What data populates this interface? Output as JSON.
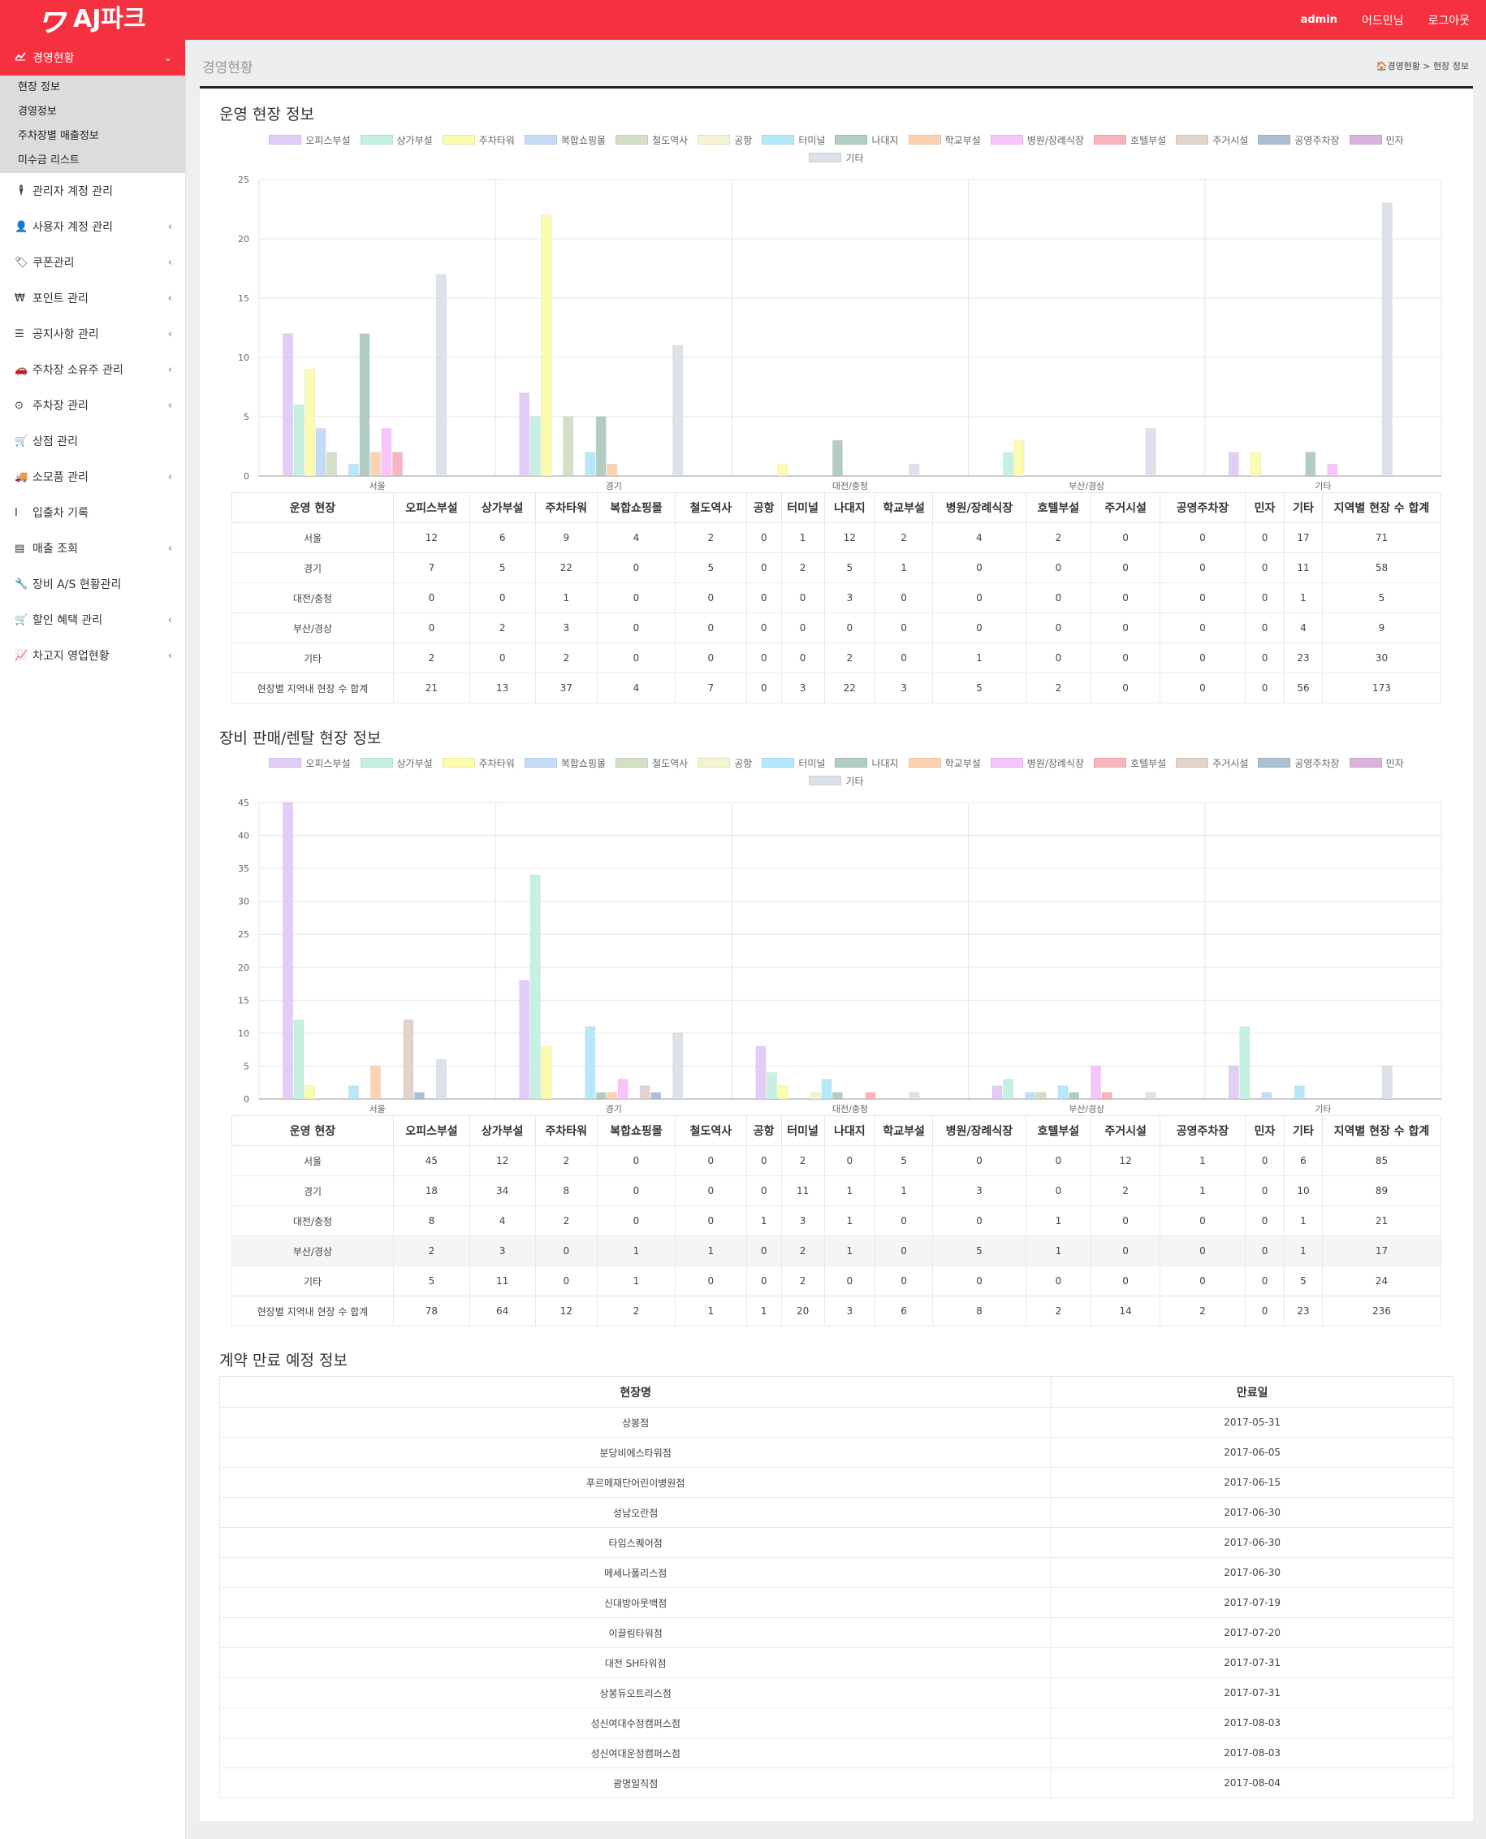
{
  "header": {
    "logo_mark": "ヮ",
    "logo_text": "AJ파크",
    "user": "admin",
    "role": "어드민님",
    "logout": "로그아웃"
  },
  "sidebar": {
    "active": {
      "label": "경영현황",
      "icon": "chart-line-icon"
    },
    "subitems": [
      "현장 정보",
      "경영정보",
      "주차장별 매출정보",
      "미수금 리스트"
    ],
    "items": [
      {
        "label": "관리자 계정 관리",
        "icon": "person-icon",
        "glyph": "🕴",
        "chevron": false
      },
      {
        "label": "사용자 계정 관리",
        "icon": "user-icon",
        "glyph": "👤",
        "chevron": true
      },
      {
        "label": "쿠폰관리",
        "icon": "tag-icon",
        "glyph": "🏷",
        "chevron": true
      },
      {
        "label": "포인트 관리",
        "icon": "won-icon",
        "glyph": "₩",
        "chevron": true
      },
      {
        "label": "공지사항 관리",
        "icon": "list-icon",
        "glyph": "☰",
        "chevron": true
      },
      {
        "label": "주차장 소유주 관리",
        "icon": "car-icon",
        "glyph": "🚗",
        "chevron": true
      },
      {
        "label": "주차장 관리",
        "icon": "circle-dot-icon",
        "glyph": "⊙",
        "chevron": true
      },
      {
        "label": "상점 관리",
        "icon": "cart-icon",
        "glyph": "🛒",
        "chevron": false
      },
      {
        "label": "소모품 관리",
        "icon": "truck-icon",
        "glyph": "🚚",
        "chevron": true
      },
      {
        "label": "입출차 기록",
        "icon": "i-cursor-icon",
        "glyph": "I",
        "chevron": false
      },
      {
        "label": "매출 조회",
        "icon": "table-icon",
        "glyph": "▤",
        "chevron": true
      },
      {
        "label": "장비 A/S 현황관리",
        "icon": "wrench-icon",
        "glyph": "🔧",
        "chevron": false
      },
      {
        "label": "할인 혜택 관리",
        "icon": "cart-plus-icon",
        "glyph": "🛒",
        "chevron": true
      },
      {
        "label": "차고지 영업현황",
        "icon": "area-chart-icon",
        "glyph": "📈",
        "chevron": true
      }
    ]
  },
  "page": {
    "title": "경영현황",
    "breadcrumb": "경영현황 > 현장 정보"
  },
  "colors": {
    "brand": "#f5313f",
    "series": [
      "#e1cdf7",
      "#c4f1e1",
      "#fcfcae",
      "#c5dcf7",
      "#d3dfc6",
      "#f4f4d2",
      "#b6e8fc",
      "#b2cdc2",
      "#fbd3b3",
      "#f7c4fb",
      "#f9b4bd",
      "#e1d4cd",
      "#aebfd3",
      "#d9b3dd",
      "#dde2ea"
    ]
  },
  "legend_names": [
    "오피스부설",
    "상가부설",
    "주차타워",
    "복합쇼핑몰",
    "철도역사",
    "공항",
    "터미널",
    "나대지",
    "학교부설",
    "병원/장례식장",
    "호텔부설",
    "주거시설",
    "공영주차장",
    "민자",
    "기타"
  ],
  "section1": {
    "title": "운영 현장 정보",
    "chart_data": {
      "type": "bar",
      "categories": [
        "서울",
        "경기",
        "대전/충청",
        "부산/경상",
        "기타"
      ],
      "ylim": [
        0,
        25
      ],
      "yticks": [
        0,
        5,
        10,
        15,
        20,
        25
      ],
      "grid": true,
      "legend": "top",
      "series": [
        {
          "name": "오피스부설",
          "values": [
            12,
            7,
            0,
            0,
            2
          ]
        },
        {
          "name": "상가부설",
          "values": [
            6,
            5,
            0,
            2,
            0
          ]
        },
        {
          "name": "주차타워",
          "values": [
            9,
            22,
            1,
            3,
            2
          ]
        },
        {
          "name": "복합쇼핑몰",
          "values": [
            4,
            0,
            0,
            0,
            0
          ]
        },
        {
          "name": "철도역사",
          "values": [
            2,
            5,
            0,
            0,
            0
          ]
        },
        {
          "name": "공항",
          "values": [
            0,
            0,
            0,
            0,
            0
          ]
        },
        {
          "name": "터미널",
          "values": [
            1,
            2,
            0,
            0,
            0
          ]
        },
        {
          "name": "나대지",
          "values": [
            12,
            5,
            3,
            0,
            2
          ]
        },
        {
          "name": "학교부설",
          "values": [
            2,
            1,
            0,
            0,
            0
          ]
        },
        {
          "name": "병원/장례식장",
          "values": [
            4,
            0,
            0,
            0,
            1
          ]
        },
        {
          "name": "호텔부설",
          "values": [
            2,
            0,
            0,
            0,
            0
          ]
        },
        {
          "name": "주거시설",
          "values": [
            0,
            0,
            0,
            0,
            0
          ]
        },
        {
          "name": "공영주차장",
          "values": [
            0,
            0,
            0,
            0,
            0
          ]
        },
        {
          "name": "민자",
          "values": [
            0,
            0,
            0,
            0,
            0
          ]
        },
        {
          "name": "기타",
          "values": [
            17,
            11,
            1,
            4,
            23
          ]
        }
      ]
    },
    "table": {
      "headers": [
        "운영 현장",
        "오피스부설",
        "상가부설",
        "주차타워",
        "복합쇼핑몰",
        "철도역사",
        "공항",
        "터미널",
        "나대지",
        "학교부설",
        "병원/장례식장",
        "호텔부설",
        "주거시설",
        "공영주차장",
        "민자",
        "기타",
        "지역별 현장 수 합계"
      ],
      "rows": [
        [
          "서울",
          "12",
          "6",
          "9",
          "4",
          "2",
          "0",
          "1",
          "12",
          "2",
          "4",
          "2",
          "0",
          "0",
          "0",
          "17",
          "71"
        ],
        [
          "경기",
          "7",
          "5",
          "22",
          "0",
          "5",
          "0",
          "2",
          "5",
          "1",
          "0",
          "0",
          "0",
          "0",
          "0",
          "11",
          "58"
        ],
        [
          "대전/충청",
          "0",
          "0",
          "1",
          "0",
          "0",
          "0",
          "0",
          "3",
          "0",
          "0",
          "0",
          "0",
          "0",
          "0",
          "1",
          "5"
        ],
        [
          "부산/경상",
          "0",
          "2",
          "3",
          "0",
          "0",
          "0",
          "0",
          "0",
          "0",
          "0",
          "0",
          "0",
          "0",
          "0",
          "4",
          "9"
        ],
        [
          "기타",
          "2",
          "0",
          "2",
          "0",
          "0",
          "0",
          "0",
          "2",
          "0",
          "1",
          "0",
          "0",
          "0",
          "0",
          "23",
          "30"
        ],
        [
          "현장별 지역내 현장 수 합계",
          "21",
          "13",
          "37",
          "4",
          "7",
          "0",
          "3",
          "22",
          "3",
          "5",
          "2",
          "0",
          "0",
          "0",
          "56",
          "173"
        ]
      ]
    }
  },
  "section2": {
    "title": "장비 판매/렌탈 현장 정보",
    "chart_data": {
      "type": "bar",
      "categories": [
        "서울",
        "경기",
        "대전/충청",
        "부산/경상",
        "기타"
      ],
      "ylim": [
        0,
        45
      ],
      "yticks": [
        0,
        5,
        10,
        15,
        20,
        25,
        30,
        35,
        40,
        45
      ],
      "grid": true,
      "legend": "top",
      "series": [
        {
          "name": "오피스부설",
          "values": [
            45,
            18,
            8,
            2,
            5
          ]
        },
        {
          "name": "상가부설",
          "values": [
            12,
            34,
            4,
            3,
            11
          ]
        },
        {
          "name": "주차타워",
          "values": [
            2,
            8,
            2,
            0,
            0
          ]
        },
        {
          "name": "복합쇼핑몰",
          "values": [
            0,
            0,
            0,
            1,
            1
          ]
        },
        {
          "name": "철도역사",
          "values": [
            0,
            0,
            0,
            1,
            0
          ]
        },
        {
          "name": "공항",
          "values": [
            0,
            0,
            1,
            0,
            0
          ]
        },
        {
          "name": "터미널",
          "values": [
            2,
            11,
            3,
            2,
            2
          ]
        },
        {
          "name": "나대지",
          "values": [
            0,
            1,
            1,
            1,
            0
          ]
        },
        {
          "name": "학교부설",
          "values": [
            5,
            1,
            0,
            0,
            0
          ]
        },
        {
          "name": "병원/장례식장",
          "values": [
            0,
            3,
            0,
            5,
            0
          ]
        },
        {
          "name": "호텔부설",
          "values": [
            0,
            0,
            1,
            1,
            0
          ]
        },
        {
          "name": "주거시설",
          "values": [
            12,
            2,
            0,
            0,
            0
          ]
        },
        {
          "name": "공영주차장",
          "values": [
            1,
            1,
            0,
            0,
            0
          ]
        },
        {
          "name": "민자",
          "values": [
            0,
            0,
            0,
            0,
            0
          ]
        },
        {
          "name": "기타",
          "values": [
            6,
            10,
            1,
            1,
            5
          ]
        }
      ]
    },
    "table": {
      "headers": [
        "운영 현장",
        "오피스부설",
        "상가부설",
        "주차타워",
        "복합쇼핑몰",
        "철도역사",
        "공항",
        "터미널",
        "나대지",
        "학교부설",
        "병원/장례식장",
        "호텔부설",
        "주거시설",
        "공영주차장",
        "민자",
        "기타",
        "지역별 현장 수 합계"
      ],
      "rows": [
        [
          "서울",
          "45",
          "12",
          "2",
          "0",
          "0",
          "0",
          "2",
          "0",
          "5",
          "0",
          "0",
          "12",
          "1",
          "0",
          "6",
          "85"
        ],
        [
          "경기",
          "18",
          "34",
          "8",
          "0",
          "0",
          "0",
          "11",
          "1",
          "1",
          "3",
          "0",
          "2",
          "1",
          "0",
          "10",
          "89"
        ],
        [
          "대전/충청",
          "8",
          "4",
          "2",
          "0",
          "0",
          "1",
          "3",
          "1",
          "0",
          "0",
          "1",
          "0",
          "0",
          "0",
          "1",
          "21"
        ],
        [
          "부산/경상",
          "2",
          "3",
          "0",
          "1",
          "1",
          "0",
          "2",
          "1",
          "0",
          "5",
          "1",
          "0",
          "0",
          "0",
          "1",
          "17"
        ],
        [
          "기타",
          "5",
          "11",
          "0",
          "1",
          "0",
          "0",
          "2",
          "0",
          "0",
          "0",
          "0",
          "0",
          "0",
          "0",
          "5",
          "24"
        ],
        [
          "현장별 지역내 현장 수 합계",
          "78",
          "64",
          "12",
          "2",
          "1",
          "1",
          "20",
          "3",
          "6",
          "8",
          "2",
          "14",
          "2",
          "0",
          "23",
          "236"
        ]
      ]
    }
  },
  "section3": {
    "title": "계약 만료 예정 정보",
    "headers": [
      "현장명",
      "만료일"
    ],
    "rows": [
      [
        "상봉점",
        "2017-05-31"
      ],
      [
        "분당비에스타워점",
        "2017-06-05"
      ],
      [
        "푸르메재단어린이병원점",
        "2017-06-15"
      ],
      [
        "성남오란점",
        "2017-06-30"
      ],
      [
        "타임스퀘어점",
        "2017-06-30"
      ],
      [
        "메세나폴리스점",
        "2017-06-30"
      ],
      [
        "신대방아웃백점",
        "2017-07-19"
      ],
      [
        "이끌림타워점",
        "2017-07-20"
      ],
      [
        "대전 SH타워점",
        "2017-07-31"
      ],
      [
        "상봉듀오트리스점",
        "2017-07-31"
      ],
      [
        "성신여대수정캠퍼스점",
        "2017-08-03"
      ],
      [
        "성신여대운정캠퍼스점",
        "2017-08-03"
      ],
      [
        "광명일직점",
        "2017-08-04"
      ]
    ]
  }
}
